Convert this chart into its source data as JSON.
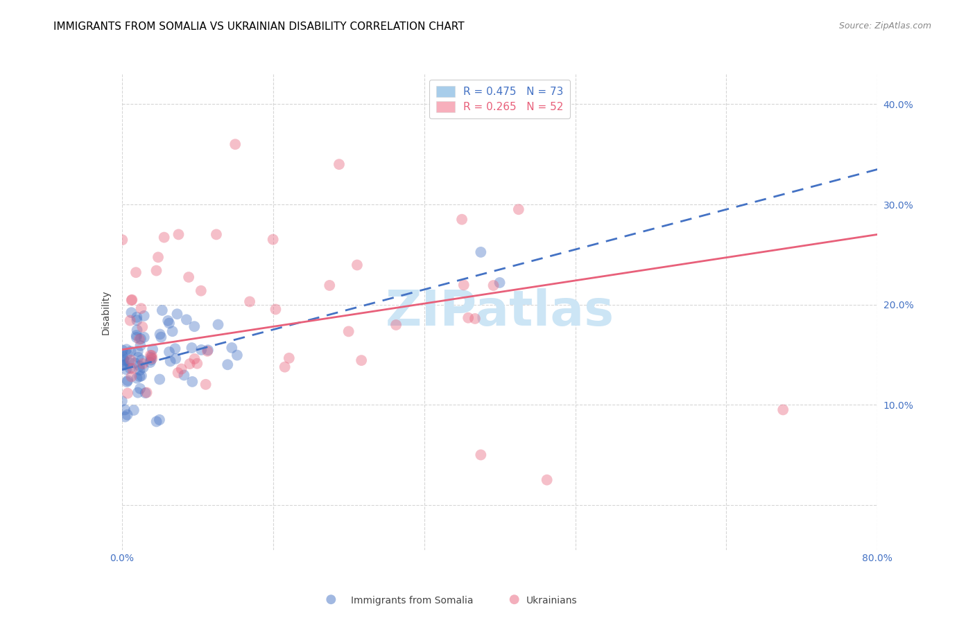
{
  "title": "IMMIGRANTS FROM SOMALIA VS UKRAINIAN DISABILITY CORRELATION CHART",
  "source": "Source: ZipAtlas.com",
  "ylabel": "Disability",
  "legend_entries": [
    {
      "label": "R = 0.475   N = 73",
      "color": "#7ab3e0"
    },
    {
      "label": "R = 0.265   N = 52",
      "color": "#f48498"
    }
  ],
  "somalia_line_x": [
    0.0,
    0.8
  ],
  "somalia_line_y": [
    0.135,
    0.335
  ],
  "somalia_line_color": "#4472c4",
  "somalia_line_style": "--",
  "ukraine_line_x": [
    0.0,
    0.8
  ],
  "ukraine_line_y": [
    0.155,
    0.27
  ],
  "ukraine_line_color": "#e8607a",
  "ukraine_line_style": "-",
  "watermark": "ZIPatlas",
  "watermark_color": "#cce5f5",
  "background_color": "#ffffff",
  "grid_color": "#cccccc",
  "axis_color": "#4472c4",
  "title_color": "#000000",
  "title_fontsize": 11,
  "source_fontsize": 9,
  "legend_fontsize": 11,
  "axis_label_fontsize": 10,
  "xlim": [
    0.0,
    0.8
  ],
  "ylim": [
    -0.045,
    0.43
  ]
}
